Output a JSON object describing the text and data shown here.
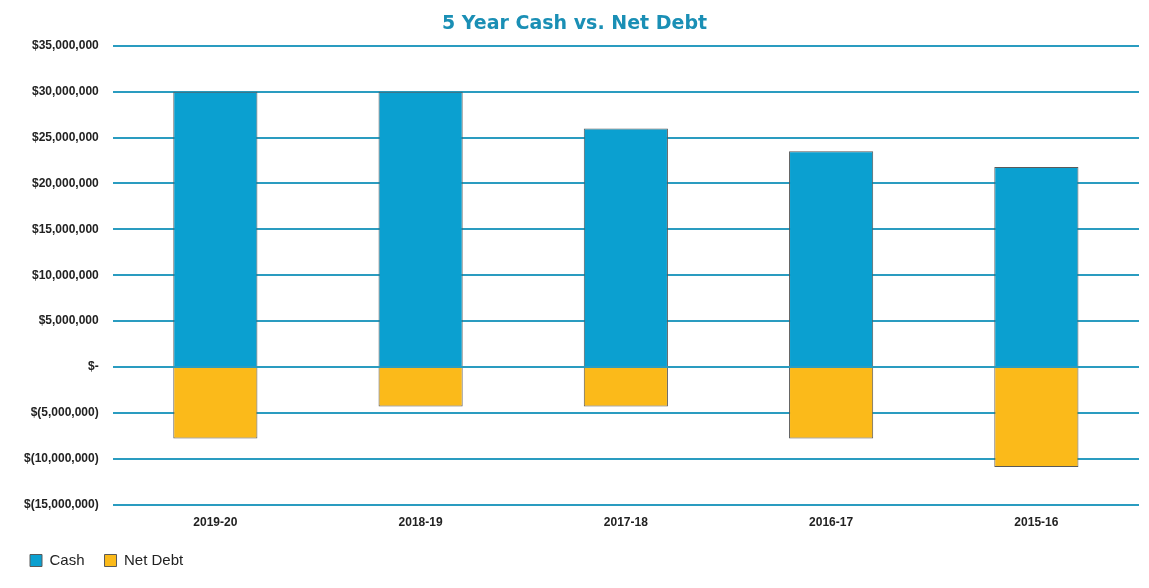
{
  "chart_data": {
    "type": "bar",
    "title": "5 Year Cash vs. Net Debt",
    "stacked": true,
    "categories": [
      "2019-20",
      "2018-19",
      "2017-18",
      "2016-17",
      "2015-16"
    ],
    "series": [
      {
        "name": "Cash",
        "color": "#0ba0d0",
        "values": [
          30000000,
          30000000,
          26000000,
          23500000,
          21800000
        ]
      },
      {
        "name": "Net Debt",
        "color": "#fbba1a",
        "values": [
          -7800000,
          -4300000,
          -4300000,
          -7800000,
          -10900000
        ]
      }
    ],
    "ylim": [
      -15000000,
      35000000
    ],
    "yticks": [
      {
        "value": -15000000,
        "label": "$(15,000,000)"
      },
      {
        "value": -10000000,
        "label": "$(10,000,000)"
      },
      {
        "value": -5000000,
        "label": "$(5,000,000)"
      },
      {
        "value": 0,
        "label": "$-"
      },
      {
        "value": 5000000,
        "label": "$5,000,000"
      },
      {
        "value": 10000000,
        "label": "$10,000,000"
      },
      {
        "value": 15000000,
        "label": "$15,000,000"
      },
      {
        "value": 20000000,
        "label": "$20,000,000"
      },
      {
        "value": 25000000,
        "label": "$25,000,000"
      },
      {
        "value": 30000000,
        "label": "$30,000,000"
      },
      {
        "value": 35000000,
        "label": "$35,000,000"
      }
    ],
    "grid": "y",
    "legend": "bottom left"
  }
}
